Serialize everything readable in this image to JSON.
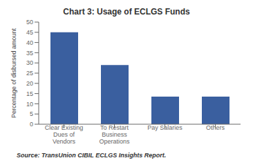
{
  "chart_data": {
    "type": "bar",
    "title": "Chart 3: Usage of ECLGS Funds",
    "categories": [
      "Clear Existing\nDues of\nVendors",
      "To Restart\nBusiness\nOperations",
      "Pay Salaries",
      "Others"
    ],
    "values": [
      45,
      29,
      13.5,
      13.5
    ],
    "color": "#3a5f9f",
    "ylabel": "Percentage of disbursed amount",
    "ylim": [
      0,
      50
    ],
    "yticks": [
      0,
      5,
      10,
      15,
      20,
      25,
      30,
      35,
      40,
      45,
      50
    ],
    "grid": false,
    "annotation": "Source: TransUnion CIBIL ECLGS Insights Report."
  }
}
